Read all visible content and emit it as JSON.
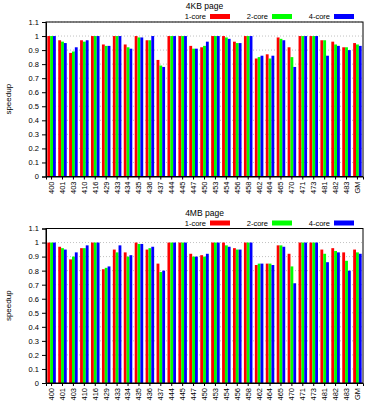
{
  "chart_data": [
    {
      "type": "bar",
      "title": "4KB page",
      "y_label": "speedup",
      "categories": [
        "400",
        "401",
        "403",
        "410",
        "416",
        "429",
        "433",
        "434",
        "435",
        "436",
        "437",
        "444",
        "445",
        "447",
        "450",
        "453",
        "454",
        "456",
        "458",
        "462",
        "464",
        "465",
        "470",
        "471",
        "473",
        "481",
        "482",
        "483",
        "GM"
      ],
      "series": [
        {
          "name": "1-core",
          "color": "#ff0000",
          "values": [
            1,
            0.97,
            0.88,
            0.97,
            1,
            0.94,
            1,
            0.94,
            1,
            0.97,
            0.83,
            1,
            1,
            0.93,
            0.92,
            1,
            1,
            0.96,
            1,
            0.84,
            0.87,
            0.99,
            0.92,
            1,
            1,
            0.97,
            0.96,
            0.92,
            0.95
          ]
        },
        {
          "name": "2-core",
          "color": "#00ff00",
          "values": [
            1,
            0.96,
            0.89,
            0.96,
            1,
            0.93,
            1,
            0.92,
            0.99,
            0.97,
            0.79,
            1,
            1,
            0.91,
            0.93,
            1,
            0.99,
            0.95,
            1,
            0.85,
            0.84,
            0.98,
            0.85,
            1,
            1,
            0.97,
            0.94,
            0.92,
            0.94
          ]
        },
        {
          "name": "4-core",
          "color": "#0000ff",
          "values": [
            1,
            0.95,
            0.92,
            0.97,
            1,
            0.93,
            1,
            0.91,
            0.99,
            1,
            0.78,
            1,
            1,
            0.91,
            0.96,
            1,
            0.98,
            0.95,
            1,
            0.86,
            0.86,
            0.97,
            0.78,
            1,
            1,
            0.86,
            0.93,
            0.9,
            0.93
          ]
        }
      ],
      "ylim": [
        0,
        1.1
      ],
      "yticks": [
        0,
        0.1,
        0.2,
        0.3,
        0.4,
        0.5,
        0.6,
        0.7,
        0.8,
        0.9,
        1,
        1.1
      ],
      "grid": true,
      "legend": "top"
    },
    {
      "type": "bar",
      "title": "4MB page",
      "y_label": "speedup",
      "categories": [
        "400",
        "401",
        "403",
        "410",
        "416",
        "429",
        "433",
        "434",
        "435",
        "436",
        "437",
        "444",
        "445",
        "447",
        "450",
        "453",
        "454",
        "456",
        "458",
        "462",
        "464",
        "465",
        "470",
        "471",
        "473",
        "481",
        "482",
        "483",
        "GM"
      ],
      "series": [
        {
          "name": "1-core",
          "color": "#ff0000",
          "values": [
            1,
            0.97,
            0.88,
            0.96,
            1,
            0.81,
            0.95,
            0.93,
            1,
            0.95,
            0.85,
            1,
            1,
            0.92,
            0.91,
            1,
            1,
            0.96,
            1,
            0.84,
            0.85,
            0.98,
            0.92,
            1,
            1,
            0.95,
            0.96,
            0.93,
            0.95
          ]
        },
        {
          "name": "2-core",
          "color": "#00ff00",
          "values": [
            1,
            0.96,
            0.9,
            0.96,
            1,
            0.82,
            0.93,
            0.9,
            0.99,
            0.96,
            0.79,
            1,
            1,
            0.9,
            0.9,
            1,
            0.98,
            0.95,
            1,
            0.85,
            0.85,
            0.98,
            0.83,
            1,
            1,
            0.92,
            0.94,
            0.87,
            0.93
          ]
        },
        {
          "name": "4-core",
          "color": "#0000ff",
          "values": [
            1,
            0.95,
            0.93,
            0.98,
            1,
            0.83,
            0.98,
            0.91,
            0.99,
            0.97,
            0.8,
            1,
            1,
            0.9,
            0.92,
            1,
            0.97,
            0.95,
            1,
            0.85,
            0.84,
            0.97,
            0.71,
            1,
            1,
            0.86,
            0.93,
            0.8,
            0.92
          ]
        }
      ],
      "ylim": [
        0,
        1.1
      ],
      "yticks": [
        0,
        0.1,
        0.2,
        0.3,
        0.4,
        0.5,
        0.6,
        0.7,
        0.8,
        0.9,
        1,
        1.1
      ],
      "grid": true,
      "legend": "top"
    }
  ]
}
